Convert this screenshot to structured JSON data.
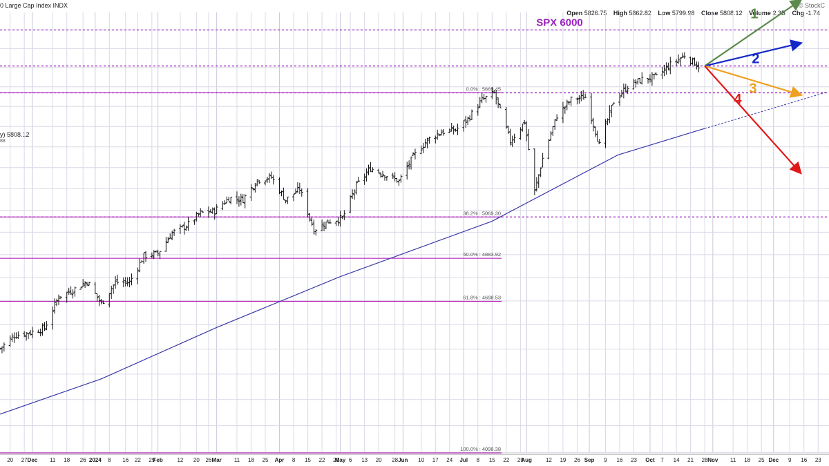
{
  "header": {
    "title": "0 Large Cap Index  INDX",
    "brand": "© StockC",
    "ohlc": [
      {
        "label": "Open",
        "value": "5826.75"
      },
      {
        "label": "High",
        "value": "5862.82"
      },
      {
        "label": "Low",
        "value": "5799.98"
      },
      {
        "label": "Close",
        "value": "5808.12"
      },
      {
        "label": "Volume",
        "value": "2.3B"
      },
      {
        "label": "Chg",
        "value": "-1.74"
      }
    ],
    "last_price": "y) 5808.12",
    "last_sub": "88"
  },
  "colors": {
    "price_bars": "#111111",
    "moving_average": "#3a3aa8",
    "fib_lines": "#b000b0",
    "level_lines": "#9a20c0",
    "grid": "#d9d9e8",
    "arrow_1": "#5b8a4a",
    "arrow_2": "#1428c8",
    "arrow_3": "#f0a020",
    "arrow_4": "#e01818"
  },
  "chart_data": {
    "type": "ohlc",
    "scale": "log",
    "grid": true,
    "ylim": [
      4098.38,
      6050
    ],
    "x_start": "2023-11-15",
    "x_end": "2024-12-27",
    "close_series": [
      [
        "2023-11-15",
        4503
      ],
      [
        "2023-11-22",
        4556
      ],
      [
        "2023-11-30",
        4568
      ],
      [
        "2023-12-07",
        4586
      ],
      [
        "2023-12-14",
        4719
      ],
      [
        "2023-12-21",
        4746
      ],
      [
        "2023-12-28",
        4783
      ],
      [
        "2024-01-04",
        4688
      ],
      [
        "2024-01-11",
        4780
      ],
      [
        "2024-01-18",
        4780
      ],
      [
        "2024-01-25",
        4894
      ],
      [
        "2024-02-01",
        4906
      ],
      [
        "2024-02-08",
        4998
      ],
      [
        "2024-02-15",
        5029
      ],
      [
        "2024-02-22",
        5087
      ],
      [
        "2024-02-29",
        5096
      ],
      [
        "2024-03-07",
        5157
      ],
      [
        "2024-03-14",
        5150
      ],
      [
        "2024-03-21",
        5241
      ],
      [
        "2024-03-28",
        5254
      ],
      [
        "2024-04-04",
        5147
      ],
      [
        "2024-04-11",
        5199
      ],
      [
        "2024-04-18",
        5011
      ],
      [
        "2024-04-25",
        5048
      ],
      [
        "2024-05-02",
        5064
      ],
      [
        "2024-05-09",
        5214
      ],
      [
        "2024-05-16",
        5297
      ],
      [
        "2024-05-23",
        5267
      ],
      [
        "2024-05-30",
        5235
      ],
      [
        "2024-06-06",
        5352
      ],
      [
        "2024-06-13",
        5433
      ],
      [
        "2024-06-20",
        5473
      ],
      [
        "2024-06-27",
        5482
      ],
      [
        "2024-07-03",
        5537
      ],
      [
        "2024-07-10",
        5633
      ],
      [
        "2024-07-16",
        5667
      ],
      [
        "2024-07-24",
        5427
      ],
      [
        "2024-07-31",
        5522
      ],
      [
        "2024-08-05",
        5186
      ],
      [
        "2024-08-09",
        5344
      ],
      [
        "2024-08-16",
        5554
      ],
      [
        "2024-08-23",
        5634
      ],
      [
        "2024-08-30",
        5648
      ],
      [
        "2024-09-06",
        5408
      ],
      [
        "2024-09-13",
        5626
      ],
      [
        "2024-09-20",
        5702
      ],
      [
        "2024-09-27",
        5738
      ],
      [
        "2024-10-04",
        5751
      ],
      [
        "2024-10-11",
        5815
      ],
      [
        "2024-10-18",
        5864
      ],
      [
        "2024-10-25",
        5808
      ],
      [
        "2024-10-28",
        5808
      ]
    ],
    "moving_average": {
      "name": "",
      "values": [
        [
          "2023-11-15",
          4244
        ],
        [
          "2024-01-04",
          4381
        ],
        [
          "2024-03-01",
          4589
        ],
        [
          "2024-05-01",
          4804
        ],
        [
          "2024-07-15",
          5050
        ],
        [
          "2024-09-15",
          5360
        ],
        [
          "2024-10-28",
          5490
        ]
      ],
      "projection_end": [
        "2024-12-27",
        5672
      ]
    },
    "fibonacci_levels": [
      {
        "label": "0.0% : 5669.45",
        "value": 5669.45
      },
      {
        "label": "38.2% : 5069.30",
        "value": 5069.3
      },
      {
        "label": "50.0% : 4883.92",
        "value": 4883.92
      },
      {
        "label": "61.8% : 4698.53",
        "value": 4698.53
      },
      {
        "label": "100.0% : 4098.38",
        "value": 4098.38
      }
    ],
    "horizontal_levels": [
      6000,
      5808.12,
      5669.45,
      5069.3
    ],
    "annotation": {
      "text": "SPX 6000",
      "value": 6000
    },
    "scenarios": [
      {
        "label": "1",
        "end": [
          "2024-12-14",
          6160
        ]
      },
      {
        "label": "2",
        "end": [
          "2024-12-14",
          5928
        ]
      },
      {
        "label": "3",
        "end": [
          "2024-12-14",
          5660
        ]
      },
      {
        "label": "4",
        "end": [
          "2024-12-14",
          5278
        ]
      }
    ],
    "scenario_origin": [
      "2024-10-28",
      5808.12
    ],
    "x_tick_labels": [
      {
        "date": "2023-11-20",
        "label": "20"
      },
      {
        "date": "2023-11-27",
        "label": "27"
      },
      {
        "date": "2023-12-01",
        "label": "Dec",
        "month": true
      },
      {
        "date": "2023-12-11",
        "label": "11"
      },
      {
        "date": "2023-12-18",
        "label": "18"
      },
      {
        "date": "2023-12-26",
        "label": "26"
      },
      {
        "date": "2024-01-01",
        "label": "2024",
        "month": true
      },
      {
        "date": "2024-01-08",
        "label": "8"
      },
      {
        "date": "2024-01-16",
        "label": "16"
      },
      {
        "date": "2024-01-22",
        "label": "22"
      },
      {
        "date": "2024-01-29",
        "label": "29"
      },
      {
        "date": "2024-02-01",
        "label": "Feb",
        "month": true
      },
      {
        "date": "2024-02-12",
        "label": "12"
      },
      {
        "date": "2024-02-20",
        "label": "20"
      },
      {
        "date": "2024-02-26",
        "label": "26"
      },
      {
        "date": "2024-03-01",
        "label": "Mar",
        "month": true
      },
      {
        "date": "2024-03-11",
        "label": "11"
      },
      {
        "date": "2024-03-18",
        "label": "18"
      },
      {
        "date": "2024-03-25",
        "label": "25"
      },
      {
        "date": "2024-04-01",
        "label": "Apr",
        "month": true
      },
      {
        "date": "2024-04-08",
        "label": "8"
      },
      {
        "date": "2024-04-15",
        "label": "15"
      },
      {
        "date": "2024-04-22",
        "label": "22"
      },
      {
        "date": "2024-04-29",
        "label": "29"
      },
      {
        "date": "2024-05-01",
        "label": "May",
        "month": true
      },
      {
        "date": "2024-05-06",
        "label": "6"
      },
      {
        "date": "2024-05-13",
        "label": "13"
      },
      {
        "date": "2024-05-20",
        "label": "20"
      },
      {
        "date": "2024-05-28",
        "label": "28"
      },
      {
        "date": "2024-06-01",
        "label": "Jun",
        "month": true
      },
      {
        "date": "2024-06-10",
        "label": "10"
      },
      {
        "date": "2024-06-17",
        "label": "17"
      },
      {
        "date": "2024-06-24",
        "label": "24"
      },
      {
        "date": "2024-07-01",
        "label": "Jul",
        "month": true
      },
      {
        "date": "2024-07-08",
        "label": "8"
      },
      {
        "date": "2024-07-15",
        "label": "15"
      },
      {
        "date": "2024-07-22",
        "label": "22"
      },
      {
        "date": "2024-07-29",
        "label": "29"
      },
      {
        "date": "2024-08-01",
        "label": "Aug",
        "month": true
      },
      {
        "date": "2024-08-12",
        "label": "12"
      },
      {
        "date": "2024-08-19",
        "label": "19"
      },
      {
        "date": "2024-08-26",
        "label": "26"
      },
      {
        "date": "2024-09-01",
        "label": "Sep",
        "month": true
      },
      {
        "date": "2024-09-09",
        "label": "9"
      },
      {
        "date": "2024-09-16",
        "label": "16"
      },
      {
        "date": "2024-09-23",
        "label": "23"
      },
      {
        "date": "2024-10-01",
        "label": "Oct",
        "month": true
      },
      {
        "date": "2024-10-07",
        "label": "7"
      },
      {
        "date": "2024-10-14",
        "label": "14"
      },
      {
        "date": "2024-10-21",
        "label": "21"
      },
      {
        "date": "2024-10-28",
        "label": "28"
      },
      {
        "date": "2024-11-01",
        "label": "Nov",
        "month": true
      },
      {
        "date": "2024-11-11",
        "label": "11"
      },
      {
        "date": "2024-11-18",
        "label": "18"
      },
      {
        "date": "2024-11-25",
        "label": "25"
      },
      {
        "date": "2024-12-01",
        "label": "Dec",
        "month": true
      },
      {
        "date": "2024-12-09",
        "label": "9"
      },
      {
        "date": "2024-12-16",
        "label": "16"
      },
      {
        "date": "2024-12-23",
        "label": "23"
      }
    ]
  }
}
